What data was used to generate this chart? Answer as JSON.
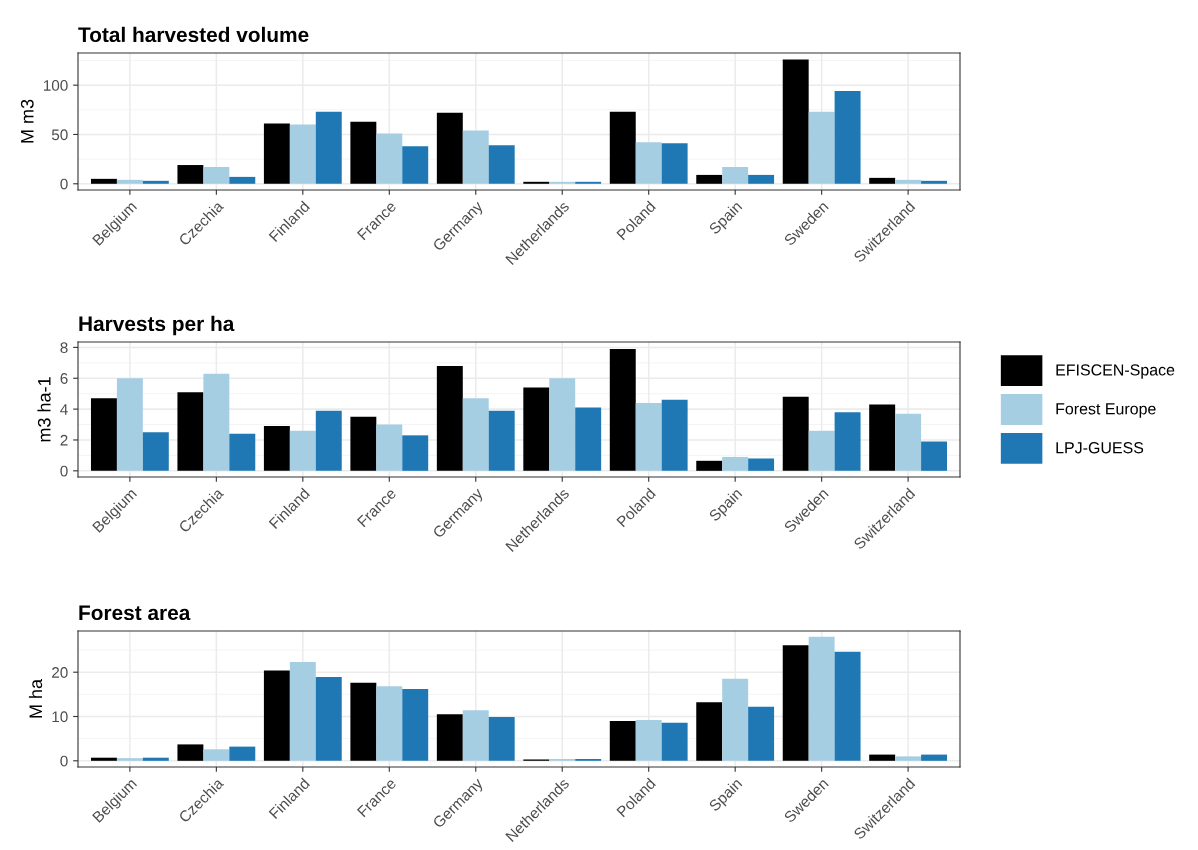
{
  "chart_data": [
    {
      "type": "bar",
      "title": "Total harvested volume",
      "ylabel": "M m3",
      "categories": [
        "Belgium",
        "Czechia",
        "Finland",
        "France",
        "Germany",
        "Netherlands",
        "Poland",
        "Spain",
        "Sweden",
        "Switzerland"
      ],
      "ylim": [
        -6.3,
        132.6
      ],
      "yticks": [
        0,
        50,
        100
      ],
      "grid": true,
      "series": [
        {
          "color": "#000000",
          "values": [
            5,
            19,
            61,
            63,
            72,
            2,
            73,
            9,
            126,
            6
          ]
        },
        {
          "color": "#a6cee3",
          "values": [
            4,
            17,
            60,
            51,
            54,
            2,
            42,
            17,
            73,
            4
          ]
        },
        {
          "color": "#1f78b4",
          "values": [
            3,
            7,
            73,
            38,
            39,
            2,
            41,
            9,
            94,
            3
          ]
        }
      ]
    },
    {
      "type": "bar",
      "title": "Harvests per ha",
      "ylabel": "m3 ha-1",
      "categories": [
        "Belgium",
        "Czechia",
        "Finland",
        "France",
        "Germany",
        "Netherlands",
        "Poland",
        "Spain",
        "Sweden",
        "Switzerland"
      ],
      "ylim": [
        -0.4,
        8.35
      ],
      "yticks": [
        0,
        2,
        4,
        6,
        8
      ],
      "grid": true,
      "legend": "right",
      "series": [
        {
          "name": "EFISCEN-Space",
          "color": "#000000",
          "values": [
            4.7,
            5.1,
            2.9,
            3.5,
            6.8,
            5.4,
            7.9,
            0.65,
            4.8,
            4.3
          ]
        },
        {
          "name": "Forest Europe",
          "color": "#a6cee3",
          "values": [
            6.0,
            6.3,
            2.6,
            3.0,
            4.7,
            6.0,
            4.4,
            0.9,
            2.6,
            3.7
          ]
        },
        {
          "name": "LPJ-GUESS",
          "color": "#1f78b4",
          "values": [
            2.5,
            2.4,
            3.9,
            2.3,
            3.9,
            4.1,
            4.6,
            0.8,
            3.8,
            1.9
          ]
        }
      ]
    },
    {
      "type": "bar",
      "title": "Forest area",
      "ylabel": "M ha",
      "categories": [
        "Belgium",
        "Czechia",
        "Finland",
        "France",
        "Germany",
        "Netherlands",
        "Poland",
        "Spain",
        "Sweden",
        "Switzerland"
      ],
      "ylim": [
        -1.4,
        29.3
      ],
      "yticks": [
        0,
        10,
        20
      ],
      "grid": true,
      "series": [
        {
          "color": "#000000",
          "values": [
            0.7,
            3.7,
            20.4,
            17.6,
            10.5,
            0.3,
            9.0,
            13.2,
            26.1,
            1.4
          ]
        },
        {
          "color": "#a6cee3",
          "values": [
            0.6,
            2.6,
            22.3,
            16.8,
            11.4,
            0.4,
            9.2,
            18.5,
            28.0,
            1.0
          ]
        },
        {
          "color": "#1f78b4",
          "values": [
            0.7,
            3.2,
            18.9,
            16.2,
            9.9,
            0.4,
            8.6,
            12.2,
            24.6,
            1.4
          ]
        }
      ]
    }
  ]
}
